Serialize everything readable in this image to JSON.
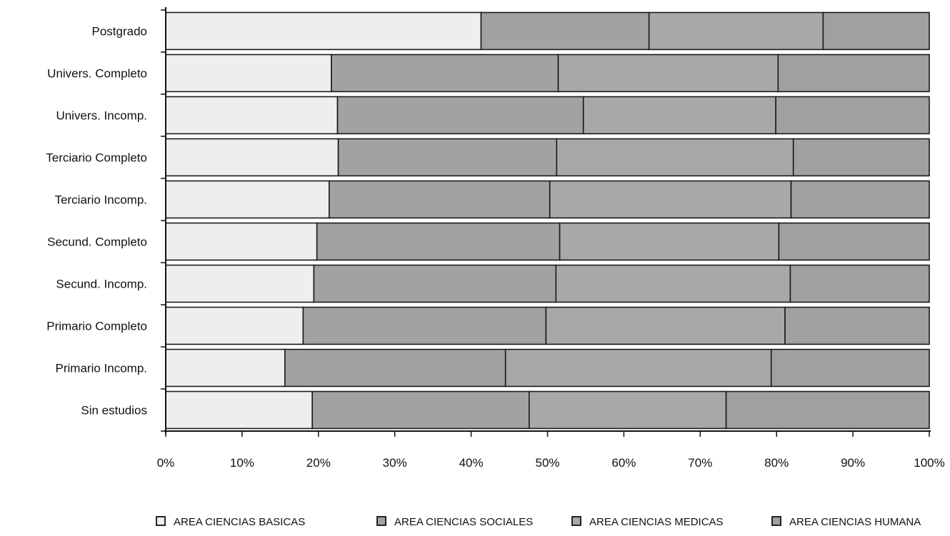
{
  "chart_data": {
    "type": "bar",
    "orientation": "horizontal",
    "stacked": "percent",
    "categories": [
      "Postgrado",
      "Univers. Completo",
      "Univers. Incomp.",
      "Terciario Completo",
      "Terciario Incomp.",
      "Secund. Completo",
      "Secund. Incomp.",
      "Primario Completo",
      "Primario Incomp.",
      "Sin estudios"
    ],
    "series": [
      {
        "name": "AREA CIENCIAS BASICAS",
        "color": "#eeeeee",
        "values": [
          41.3,
          21.7,
          22.5,
          22.6,
          21.4,
          19.8,
          19.4,
          18.0,
          15.6,
          19.2
        ]
      },
      {
        "name": "AREA CIENCIAS SOCIALES",
        "color": "#a2a2a2",
        "values": [
          22.0,
          29.7,
          32.2,
          28.6,
          28.9,
          31.8,
          31.7,
          31.8,
          28.9,
          28.4
        ]
      },
      {
        "name": "AREA CIENCIAS MEDICAS",
        "color": "#a8a8a8",
        "values": [
          22.8,
          28.8,
          25.2,
          31.0,
          31.6,
          28.7,
          30.7,
          31.3,
          34.8,
          25.8
        ]
      },
      {
        "name": "AREA CIENCIAS HUMANA",
        "color": "#a0a0a0",
        "values": [
          13.9,
          19.8,
          20.1,
          17.8,
          18.1,
          19.7,
          18.2,
          18.9,
          20.7,
          26.6
        ]
      }
    ],
    "x_ticks": [
      "0%",
      "10%",
      "20%",
      "30%",
      "40%",
      "50%",
      "60%",
      "70%",
      "80%",
      "90%",
      "100%"
    ],
    "xlim": [
      0,
      100
    ],
    "title": "",
    "xlabel": "",
    "ylabel": "",
    "grid": false,
    "legend_position": "bottom"
  }
}
